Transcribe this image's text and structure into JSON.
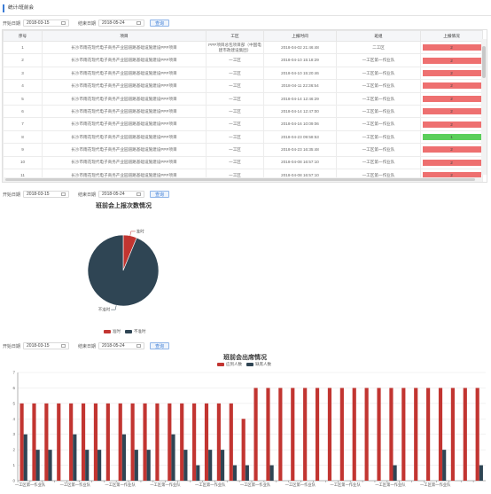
{
  "breadcrumb": "统计/班前会",
  "filter": {
    "start_label": "开始日期",
    "start_date": "2018-03-15",
    "end_label": "结束日期",
    "end_date": "2018-05-24",
    "query_label": "查询"
  },
  "table": {
    "headers": [
      "序号",
      "项目",
      "工区",
      "上报时间",
      "班组",
      "上报情况"
    ],
    "rows": [
      {
        "no": "1",
        "project": "长沙市雨花现代电子商务产业园道路基础设施建设PPP项目",
        "area": "PPP项目总包项目部（中国电建市政建设集团）",
        "time": "2018-04-02 21:46:48",
        "team": "二工区",
        "count": "2",
        "status": "red"
      },
      {
        "no": "2",
        "project": "长沙市雨花现代电子商务产业园道路基础设施建设PPP项目",
        "area": "一工区",
        "time": "2018-04-10 15:18:29",
        "team": "一工区第一作业队",
        "count": "2",
        "status": "red"
      },
      {
        "no": "3",
        "project": "长沙市雨花现代电子商务产业园道路基础设施建设PPP项目",
        "area": "一工区",
        "time": "2018-04-10 15:20:46",
        "team": "一工区第一作业队",
        "count": "2",
        "status": "red"
      },
      {
        "no": "4",
        "project": "长沙市雨花现代电子商务产业园道路基础设施建设PPP项目",
        "area": "一工区",
        "time": "2018-04-11 22:36:54",
        "team": "一工区第一作业队",
        "count": "2",
        "status": "red"
      },
      {
        "no": "5",
        "project": "长沙市雨花现代电子商务产业园道路基础设施建设PPP项目",
        "area": "一工区",
        "time": "2018-04-14 12:46:29",
        "team": "一工区第一作业队",
        "count": "2",
        "status": "red"
      },
      {
        "no": "6",
        "project": "长沙市雨花现代电子商务产业园道路基础设施建设PPP项目",
        "area": "一工区",
        "time": "2018-04-14 12:47:00",
        "team": "一工区第一作业队",
        "count": "2",
        "status": "red"
      },
      {
        "no": "7",
        "project": "长沙市雨花现代电子商务产业园道路基础设施建设PPP项目",
        "area": "一工区",
        "time": "2018-04-16 10:09:06",
        "team": "一工区第一作业队",
        "count": "2",
        "status": "red"
      },
      {
        "no": "8",
        "project": "长沙市雨花现代电子商务产业园道路基础设施建设PPP项目",
        "area": "一工区",
        "time": "2018-04-23 09:58:53",
        "team": "一工区第一作业队",
        "count": "1",
        "status": "green"
      },
      {
        "no": "9",
        "project": "长沙市雨花现代电子商务产业园道路基础设施建设PPP项目",
        "area": "一工区",
        "time": "2018-04-23 16:35:48",
        "team": "一工区第一作业队",
        "count": "2",
        "status": "red"
      },
      {
        "no": "10",
        "project": "长沙市雨花现代电子商务产业园道路基础设施建设PPP项目",
        "area": "一工区",
        "time": "2018-04-08 16:57:10",
        "team": "一工区第一作业队",
        "count": "2",
        "status": "red"
      },
      {
        "no": "11",
        "project": "长沙市雨花现代电子商务产业园道路基础设施建设PPP项目",
        "area": "一工区",
        "time": "2018-04-08 16:57:10",
        "team": "一工区第一作业队",
        "count": "2",
        "status": "red"
      }
    ]
  },
  "colors": {
    "red": "#c23531",
    "navy": "#2f4554"
  },
  "chart_data": [
    {
      "type": "pie",
      "title": "班前会上报次数情况",
      "legend_position": "bottom",
      "slices": [
        {
          "name": "准时",
          "value": 1
        },
        {
          "name": "不准时",
          "value": 15
        }
      ]
    },
    {
      "type": "bar",
      "title": "班前会出席情况",
      "legend_position": "top",
      "ylim": [
        0,
        7
      ],
      "categories": [
        "一工区第一作业队",
        "一工区第一作业队",
        "一工区第一作业队",
        "一工区第一作业队",
        "一工区第一作业队",
        "一工区第一作业队",
        "一工区第一作业队",
        "一工区第一作业队",
        "一工区第一作业队",
        "一工区第一作业队",
        "一工区第一作业队",
        "一工区第一作业队",
        "一工区第一作业队",
        "一工区第一作业队",
        "一工区第一作业队",
        "一工区第一作业队",
        "一工区第一作业队",
        "一工区第一作业队",
        "一工区第一作业队",
        "一工区第一作业队",
        "一工区第一作业队",
        "一工区第一作业队",
        "一工区第一作业队",
        "一工区第一作业队",
        "一工区第一作业队",
        "一工区第一作业队",
        "一工区第一作业队",
        "一工区第一作业队",
        "一工区第一作业队",
        "一工区第一作业队",
        "一工区第一作业队",
        "一工区第一作业队",
        "一工区第一作业队",
        "一工区第一作业队",
        "一工区第一作业队",
        "一工区第一作业队",
        "一工区第一作业队",
        "一工区第一作业队"
      ],
      "x_tick_labels": [
        "一工区第一作业队",
        "一工区第一作业队",
        "一工区第一作业队",
        "一工区第一作业队",
        "一工区第一作业队",
        "一工区第一作业队",
        "一工区第一作业队",
        "一工区第一作业队",
        "一工区第一作业队",
        "一工区第一作业队"
      ],
      "series": [
        {
          "name": "应到人数",
          "values": [
            5,
            5,
            5,
            5,
            5,
            5,
            5,
            5,
            5,
            5,
            5,
            5,
            5,
            5,
            5,
            5,
            5,
            5,
            4,
            6,
            6,
            6,
            6,
            6,
            6,
            6,
            6,
            6,
            6,
            6,
            6,
            6,
            6,
            6,
            6,
            6,
            6,
            6
          ]
        },
        {
          "name": "缺席人数",
          "values": [
            3,
            2,
            2,
            0,
            3,
            2,
            2,
            0,
            3,
            2,
            2,
            0,
            3,
            2,
            1,
            2,
            2,
            1,
            1,
            0,
            1,
            0,
            0,
            0,
            0,
            0,
            0,
            0,
            0,
            0,
            1,
            0,
            0,
            0,
            2,
            0,
            0,
            1
          ]
        }
      ]
    }
  ]
}
